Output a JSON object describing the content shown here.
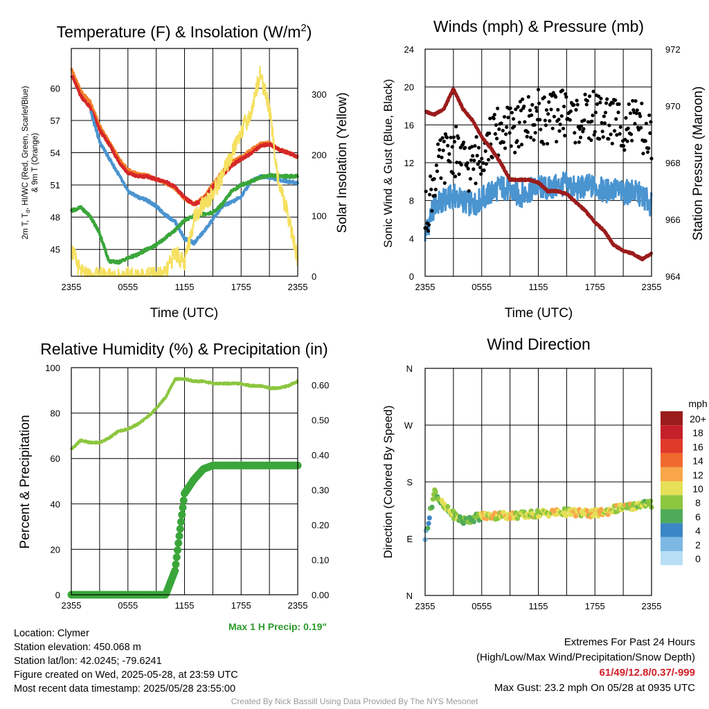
{
  "chart_data": [
    {
      "type": "line",
      "title": "Temperature (F) & Insolation (W/m²)",
      "xlabel": "Time (UTC)",
      "ylabel": "2m T, Td, HI/WC (Red, Green, Scarlet/Blue) & 9m T (Orange)",
      "y2label": "Solar Insolation (Yellow)",
      "x_ticks": [
        "2355",
        "0555",
        "1155",
        "1755",
        "2355"
      ],
      "ylim": [
        42.5,
        63.7
      ],
      "y_ticks": [
        45,
        48,
        51,
        54,
        57,
        60
      ],
      "y2lim": [
        0,
        375
      ],
      "y2_ticks": [
        0,
        100,
        200,
        300
      ],
      "x_hours": [
        0,
        1,
        2,
        3,
        4,
        5,
        6,
        7,
        8,
        9,
        10,
        11,
        12,
        13,
        14,
        15,
        16,
        17,
        18,
        19,
        20,
        21,
        22,
        23,
        24
      ],
      "series": [
        {
          "color": "#f4802a",
          "values": [
            61.8,
            59.7,
            58.7,
            56.5,
            55.0,
            53.5,
            52.4,
            52.0,
            51.9,
            51.5,
            51.2,
            50.7,
            49.7,
            49.2,
            49.8,
            51.0,
            52.2,
            53.1,
            53.6,
            54.2,
            54.8,
            54.9,
            54.3,
            54.0,
            53.6
          ]
        },
        {
          "color": "#d62728",
          "values": [
            61.3,
            59.3,
            58.2,
            56.1,
            54.8,
            53.2,
            52.1,
            51.8,
            51.8,
            51.5,
            51.3,
            50.8,
            49.8,
            49.2,
            49.6,
            50.8,
            51.9,
            52.8,
            53.4,
            53.9,
            54.6,
            54.8,
            54.3,
            54.0,
            53.6
          ]
        },
        {
          "color": "#4a94d0",
          "values": [
            null,
            null,
            58.0,
            55.0,
            53.5,
            52.0,
            50.4,
            49.9,
            49.6,
            49.0,
            48.2,
            47.6,
            46.0,
            45.6,
            46.6,
            47.8,
            49.0,
            49.4,
            49.9,
            51.3,
            51.8,
            51.7,
            51.5,
            51.3,
            51.2
          ]
        },
        {
          "color": "#3aa63a",
          "values": [
            48.6,
            48.9,
            48.1,
            46.5,
            43.9,
            43.8,
            44.2,
            44.5,
            45.0,
            45.4,
            46.1,
            46.8,
            47.7,
            48.1,
            48.3,
            48.4,
            49.2,
            50.4,
            51.0,
            51.3,
            51.7,
            51.9,
            51.8,
            51.8,
            51.8
          ]
        },
        {
          "color": "#f5e060",
          "axis": "y2",
          "values": [
            45,
            5,
            0,
            0,
            0,
            0,
            0,
            0,
            0,
            0,
            3,
            40,
            20,
            95,
            120,
            135,
            165,
            200,
            240,
            265,
            335,
            275,
            150,
            100,
            25
          ]
        }
      ]
    },
    {
      "type": "scatter",
      "title": "Winds (mph) & Pressure (mb)",
      "xlabel": "Time (UTC)",
      "ylabel": "Sonic Wind & Gust (Blue, Black)",
      "y2label": "Station Pressure (Maroon)",
      "x_ticks": [
        "2355",
        "0555",
        "1155",
        "1755",
        "2355"
      ],
      "ylim": [
        0,
        24
      ],
      "y_ticks": [
        0,
        4,
        8,
        12,
        16,
        20,
        24
      ],
      "y2lim": [
        964,
        972
      ],
      "y2_ticks": [
        964,
        966,
        968,
        970,
        972
      ],
      "x_hours": [
        0,
        1,
        2,
        3,
        4,
        5,
        6,
        7,
        8,
        9,
        10,
        11,
        12,
        13,
        14,
        15,
        16,
        17,
        18,
        19,
        20,
        21,
        22,
        23,
        24
      ],
      "series": [
        {
          "color": "#4a94d0",
          "style": "line",
          "values": [
            4.5,
            7.5,
            8.0,
            8.5,
            8.0,
            7.5,
            8.2,
            8.8,
            9.5,
            9.0,
            8.5,
            9.0,
            9.5,
            9.2,
            9.5,
            9.8,
            9.2,
            9.5,
            9.5,
            9.0,
            9.2,
            8.8,
            9.0,
            8.5,
            7.5
          ]
        },
        {
          "color": "#000000",
          "style": "dots",
          "values": [
            6.0,
            10.5,
            12.5,
            13.5,
            12.0,
            11.5,
            13.5,
            14.5,
            15.5,
            15.5,
            16.0,
            16.5,
            17.0,
            16.5,
            17.0,
            17.5,
            16.5,
            16.5,
            17.0,
            16.5,
            16.5,
            16.0,
            16.0,
            15.5,
            14.0
          ]
        },
        {
          "color": "#9b1c1c",
          "style": "line",
          "axis": "y2",
          "values": [
            969.8,
            969.7,
            969.9,
            970.6,
            969.9,
            969.5,
            968.9,
            968.5,
            968.0,
            967.4,
            967.4,
            967.4,
            967.3,
            967.0,
            967.0,
            966.9,
            966.6,
            966.3,
            965.9,
            965.6,
            965.1,
            964.9,
            964.8,
            964.6,
            964.8
          ]
        }
      ]
    },
    {
      "type": "line",
      "title": "Relative Humidity (%) & Precipitation (in)",
      "ylabel": "Percent & Precipitation",
      "x_ticks": [
        "2355",
        "0555",
        "1155",
        "1755",
        "2355"
      ],
      "ylim": [
        0,
        100
      ],
      "y_ticks": [
        0,
        20,
        40,
        60,
        80,
        100
      ],
      "y2lim": [
        0,
        0.65
      ],
      "y2_ticks": [
        "0.00",
        "0.10",
        "0.20",
        "0.30",
        "0.40",
        "0.50",
        "0.60"
      ],
      "x_hours": [
        0,
        1,
        2,
        3,
        4,
        5,
        6,
        7,
        8,
        9,
        10,
        11,
        12,
        13,
        14,
        15,
        16,
        17,
        18,
        19,
        20,
        21,
        22,
        23,
        24
      ],
      "series": [
        {
          "color": "#8cc63f",
          "values": [
            64,
            68,
            67,
            67,
            69,
            72,
            73,
            75,
            78,
            82,
            87,
            95,
            95,
            94,
            94,
            93,
            93,
            93,
            93,
            92,
            92,
            91,
            91,
            92,
            94
          ]
        },
        {
          "color": "#3aa63a",
          "style": "dots",
          "axis": "y2",
          "values": [
            0,
            0,
            0,
            0,
            0,
            0,
            0,
            0,
            0,
            0,
            0,
            0.07,
            0.29,
            0.33,
            0.36,
            0.37,
            0.37,
            0.37,
            0.37,
            0.37,
            0.37,
            0.37,
            0.37,
            0.37,
            0.37
          ]
        }
      ],
      "annotation": "Max 1 H Precip: 0.19\""
    },
    {
      "type": "scatter",
      "title": "Wind Direction",
      "ylabel": "Direction (Colored By Speed)",
      "x_ticks": [
        "2355",
        "0555",
        "1155",
        "1755",
        "2355"
      ],
      "y_ticks": [
        "N",
        "E",
        "S",
        "W",
        "N"
      ],
      "ylim": [
        0,
        360
      ],
      "x_hours": [
        0,
        1,
        2,
        3,
        4,
        5,
        6,
        7,
        8,
        9,
        10,
        11,
        12,
        13,
        14,
        15,
        16,
        17,
        18,
        19,
        20,
        21,
        22,
        23,
        24
      ],
      "values": [
        92,
        165,
        140,
        128,
        118,
        122,
        126,
        126,
        127,
        127,
        127,
        128,
        130,
        131,
        131,
        132,
        131,
        130,
        130,
        132,
        137,
        139,
        141,
        146,
        144
      ],
      "speeds": [
        3,
        7,
        8,
        8,
        7,
        7,
        9,
        10,
        10,
        11,
        9,
        10,
        9,
        10,
        10,
        9,
        11,
        10,
        12,
        10,
        9,
        10,
        9,
        8,
        7
      ],
      "legend": {
        "title": "mph",
        "labels": [
          "20+",
          "18",
          "16",
          "14",
          "12",
          "10",
          "8",
          "6",
          "4",
          "2",
          "0"
        ],
        "colors": [
          "#9b1c1c",
          "#c4202a",
          "#e03a2b",
          "#f0692c",
          "#f9a64a",
          "#e5e057",
          "#8cc63f",
          "#4fab59",
          "#3b86c6",
          "#7cb8e3",
          "#b8dff5"
        ]
      }
    }
  ],
  "footer": {
    "location": "Location: Clymer",
    "elevation": "Station elevation: 450.068 m",
    "latlon": "Station lat/lon: 42.0245; -79.6241",
    "created": "Figure created on Wed, 2025-05-28, at 23:59 UTC",
    "recent": "Most recent data timestamp: 2025/05/28 23:55:00",
    "extremes_title": "Extremes For Past 24 Hours",
    "extremes_sub": "(High/Low/Max Wind/Precipitation/Snow Depth)",
    "extremes_values": "61/49/12.8/0.37/-999",
    "max_gust": "Max Gust: 23.2 mph On 05/28 at 0935 UTC",
    "credit": "Created By Nick Bassill Using Data Provided By The NYS Mesonet"
  }
}
